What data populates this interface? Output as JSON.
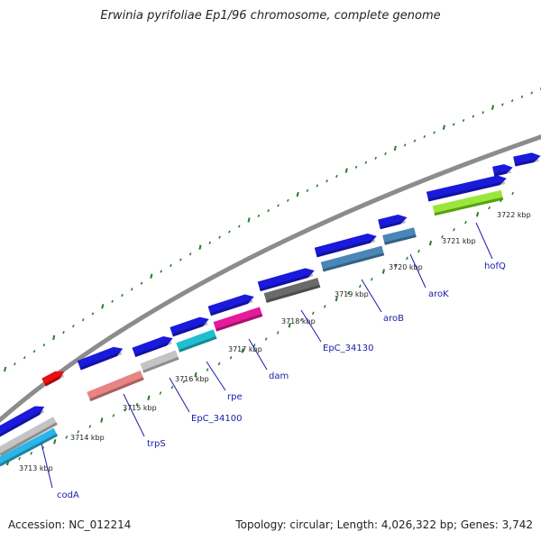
{
  "title": "Erwinia pyrifoliae Ep1/96 chromosome, complete genome",
  "footer": {
    "accession": "Accession: NC_012214",
    "topology": "Topology: circular; Length: 4,026,322 bp; Genes: 3,742"
  },
  "tick_labels": [
    "3713 kbp",
    "3714 kbp",
    "3715 kbp",
    "3716 kbp",
    "3717 kbp",
    "3718 kbp",
    "3719 kbp",
    "3720 kbp",
    "3721 kbp",
    "3722 kbp"
  ],
  "gene_labels": [
    "codA",
    "trpS",
    "EpC_34100",
    "rpe",
    "dam",
    "EpC_34130",
    "aroB",
    "aroK",
    "hofQ"
  ],
  "colors": {
    "backbone": "#8c8c8c",
    "cds": "#1a1adc",
    "highlight_red": "#e81010",
    "cyan": "#1fbfcf",
    "light_cyan": "#2ab6e8",
    "salmon": "#e88484",
    "light_gray": "#c4c4c4",
    "magenta": "#e61a9a",
    "dark_gray": "#6a6a6a",
    "steel_blue": "#4a86b8",
    "lime": "#9ae63a",
    "ticks": "#2a7a2a",
    "label": "#1a1aaa"
  }
}
